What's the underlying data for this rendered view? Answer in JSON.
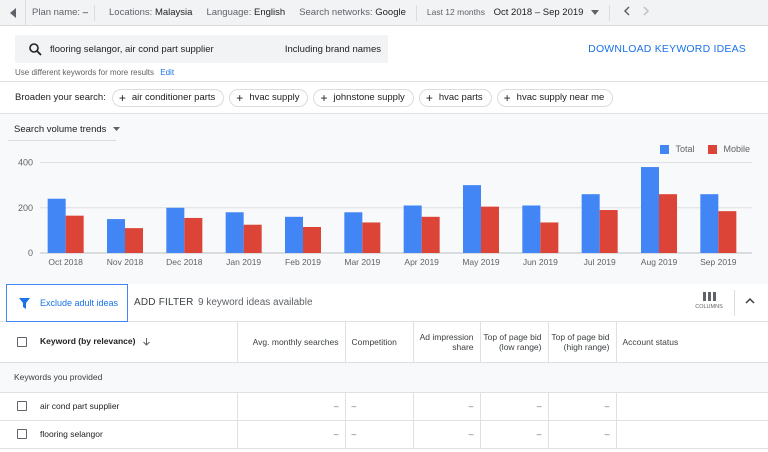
{
  "topbar": {
    "plan_label": "Plan name:",
    "plan_value": "–",
    "locations_label": "Locations:",
    "locations_value": "Malaysia",
    "language_label": "Language:",
    "language_value": "English",
    "networks_label": "Search networks:",
    "networks_value": "Google",
    "period_label": "Last 12 months",
    "period_value": "Oct 2018 – Sep 2019"
  },
  "search": {
    "query": "flooring selangor, air cond part supplier",
    "brand_toggle": "Including brand names",
    "download_label": "DOWNLOAD KEYWORD IDEAS",
    "hint": "Use different keywords for more results",
    "edit_label": "Edit"
  },
  "broaden": {
    "label": "Broaden your search:",
    "chips": [
      "air conditioner parts",
      "hvac supply",
      "johnstone supply",
      "hvac parts",
      "hvac supply near me"
    ]
  },
  "trend": {
    "selector": "Search volume trends",
    "legend_total": "Total",
    "legend_mobile": "Mobile"
  },
  "colors": {
    "total": "#4285f4",
    "mobile": "#db4437",
    "accent": "#1a73e8"
  },
  "chart_data": {
    "type": "bar",
    "categories": [
      "Oct 2018",
      "Nov 2018",
      "Dec 2018",
      "Jan 2019",
      "Feb 2019",
      "Mar 2019",
      "Apr 2019",
      "May 2019",
      "Jun 2019",
      "Jul 2019",
      "Aug 2019",
      "Sep 2019"
    ],
    "series": [
      {
        "name": "Total",
        "values": [
          240,
          150,
          200,
          180,
          160,
          180,
          210,
          300,
          210,
          260,
          380,
          260
        ]
      },
      {
        "name": "Mobile",
        "values": [
          165,
          110,
          155,
          125,
          115,
          135,
          160,
          205,
          135,
          190,
          260,
          185
        ]
      }
    ],
    "yticks": [
      0,
      200,
      400
    ],
    "ylim": [
      0,
      420
    ],
    "grid": true,
    "legend": "top-right"
  },
  "filter": {
    "exclude_label": "Exclude adult ideas",
    "add_filter": "ADD FILTER",
    "available": "9 keyword ideas available",
    "columns_label": "COLUMNS"
  },
  "table": {
    "headers": {
      "keyword": "Keyword (by relevance)",
      "avg": "Avg. monthly searches",
      "competition": "Competition",
      "impression": "Ad impression share",
      "bid_low": "Top of page bid (low range)",
      "bid_high": "Top of page bid (high range)",
      "account": "Account status"
    },
    "section": "Keywords you provided",
    "rows": [
      {
        "keyword": "air cond part supplier",
        "avg": "–",
        "competition": "–",
        "impression": "–",
        "bid_low": "–",
        "bid_high": "–",
        "account": ""
      },
      {
        "keyword": "flooring selangor",
        "avg": "–",
        "competition": "–",
        "impression": "–",
        "bid_low": "–",
        "bid_high": "–",
        "account": ""
      }
    ]
  }
}
